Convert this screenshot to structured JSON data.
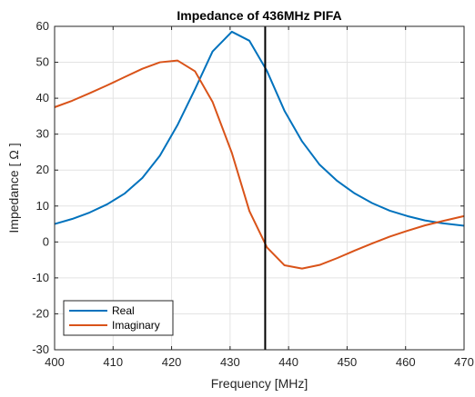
{
  "chart_data": {
    "type": "line",
    "title": "Impedance of 436MHz PIFA",
    "xlabel": "Frequency [MHz]",
    "ylabel": "Impedance [ Ω ]",
    "xlim": [
      400,
      470
    ],
    "ylim": [
      -30,
      60
    ],
    "xticks": [
      400,
      410,
      420,
      430,
      440,
      450,
      460,
      470
    ],
    "yticks": [
      -30,
      -20,
      -10,
      0,
      10,
      20,
      30,
      40,
      50,
      60
    ],
    "grid": true,
    "legend_position": "bottom-left",
    "vertical_marker_x": 436,
    "series": [
      {
        "name": "Real",
        "color": "#0072BD",
        "x": [
          400,
          403,
          406,
          409,
          412,
          415,
          418,
          421,
          424,
          427,
          430.3,
          433.3,
          436.3,
          439.3,
          442.3,
          445.3,
          448.3,
          451.3,
          454.3,
          457.3,
          460.3,
          463.3,
          466.3,
          470
        ],
        "y": [
          5,
          6.4,
          8.2,
          10.5,
          13.5,
          17.8,
          24,
          32.5,
          42.5,
          53,
          58.5,
          56,
          47.6,
          36.5,
          28,
          21.5,
          17,
          13.5,
          10.8,
          8.7,
          7.2,
          6,
          5.2,
          4.5
        ]
      },
      {
        "name": "Imaginary",
        "color": "#D95319",
        "x": [
          400,
          403,
          406,
          409,
          412,
          415,
          418,
          421,
          424,
          427,
          430.3,
          433.3,
          436.3,
          439.3,
          442.3,
          445.3,
          448.3,
          451.3,
          454.3,
          457.3,
          460.3,
          463.3,
          466.3,
          470
        ],
        "y": [
          37.5,
          39.3,
          41.4,
          43.6,
          45.9,
          48.2,
          50,
          50.5,
          47.5,
          39,
          24.8,
          8.6,
          -1.5,
          -6.5,
          -7.4,
          -6.4,
          -4.5,
          -2.4,
          -0.4,
          1.5,
          3.1,
          4.6,
          5.8,
          7.2
        ]
      }
    ]
  }
}
